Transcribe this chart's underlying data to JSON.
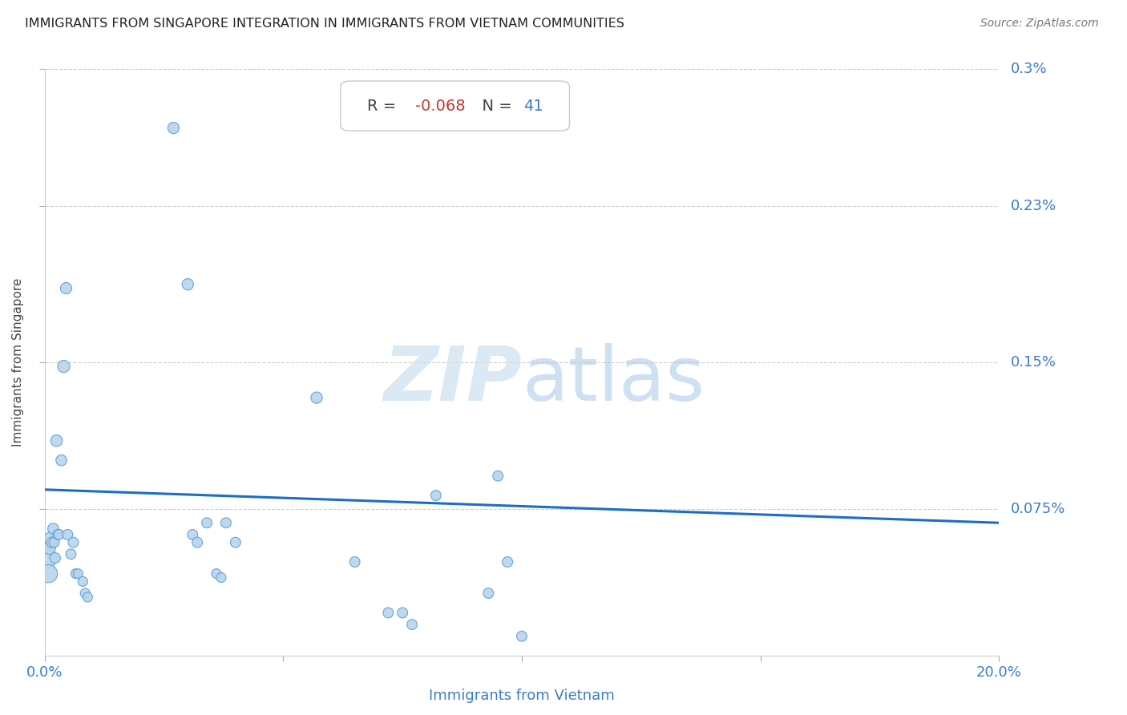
{
  "title": "IMMIGRANTS FROM SINGAPORE INTEGRATION IN IMMIGRANTS FROM VIETNAM COMMUNITIES",
  "source": "Source: ZipAtlas.com",
  "xlabel": "Immigrants from Vietnam",
  "ylabel": "Immigrants from Singapore",
  "R": -0.068,
  "N": 41,
  "xlim": [
    0.0,
    0.2
  ],
  "ylim": [
    0.0,
    0.003
  ],
  "xtick_positions": [
    0.0,
    0.05,
    0.1,
    0.15,
    0.2
  ],
  "xtick_labels": [
    "0.0%",
    "",
    "",
    "",
    "20.0%"
  ],
  "ytick_positions": [
    0.00075,
    0.0015,
    0.0023,
    0.003
  ],
  "ytick_labels": [
    "0.075%",
    "0.15%",
    "0.23%",
    "0.3%"
  ],
  "scatter_color": "#b8d4ec",
  "scatter_edge_color": "#5a9fd4",
  "line_color": "#1a6fc4",
  "title_color": "#222222",
  "source_color": "#777777",
  "axis_label_color": "#3a7dcc",
  "ylabel_color": "#444444",
  "annotation_R_color": "#cc3333",
  "annotation_N_color": "#3a7dcc",
  "annotation_text_color": "#444444",
  "watermark_zip_color": "#cce0f0",
  "watermark_atlas_color": "#a8c8e8",
  "grid_color": "#cccccc",
  "regression_y_start": 0.00085,
  "regression_y_end": 0.00068,
  "points": [
    [
      0.0005,
      0.0005
    ],
    [
      0.0008,
      0.00042
    ],
    [
      0.001,
      0.00055
    ],
    [
      0.0012,
      0.0006
    ],
    [
      0.0015,
      0.00058
    ],
    [
      0.0018,
      0.00065
    ],
    [
      0.002,
      0.00058
    ],
    [
      0.0022,
      0.0005
    ],
    [
      0.0025,
      0.0011
    ],
    [
      0.0028,
      0.00062
    ],
    [
      0.003,
      0.00062
    ],
    [
      0.0035,
      0.001
    ],
    [
      0.004,
      0.00148
    ],
    [
      0.0045,
      0.00188
    ],
    [
      0.0048,
      0.00062
    ],
    [
      0.0055,
      0.00052
    ],
    [
      0.006,
      0.00058
    ],
    [
      0.0065,
      0.00042
    ],
    [
      0.007,
      0.00042
    ],
    [
      0.008,
      0.00038
    ],
    [
      0.0085,
      0.00032
    ],
    [
      0.009,
      0.0003
    ],
    [
      0.027,
      0.0027
    ],
    [
      0.03,
      0.0019
    ],
    [
      0.031,
      0.00062
    ],
    [
      0.032,
      0.00058
    ],
    [
      0.034,
      0.00068
    ],
    [
      0.036,
      0.00042
    ],
    [
      0.037,
      0.0004
    ],
    [
      0.038,
      0.00068
    ],
    [
      0.04,
      0.00058
    ],
    [
      0.057,
      0.00132
    ],
    [
      0.065,
      0.00048
    ],
    [
      0.072,
      0.00022
    ],
    [
      0.075,
      0.00022
    ],
    [
      0.077,
      0.00016
    ],
    [
      0.082,
      0.00082
    ],
    [
      0.093,
      0.00032
    ],
    [
      0.095,
      0.00092
    ],
    [
      0.097,
      0.00048
    ],
    [
      0.1,
      0.0001
    ]
  ],
  "point_sizes": [
    320,
    260,
    120,
    130,
    90,
    95,
    85,
    90,
    110,
    85,
    85,
    95,
    120,
    105,
    85,
    85,
    85,
    75,
    75,
    75,
    75,
    75,
    105,
    105,
    85,
    85,
    85,
    75,
    75,
    85,
    85,
    105,
    85,
    85,
    85,
    85,
    85,
    85,
    85,
    85,
    85
  ]
}
